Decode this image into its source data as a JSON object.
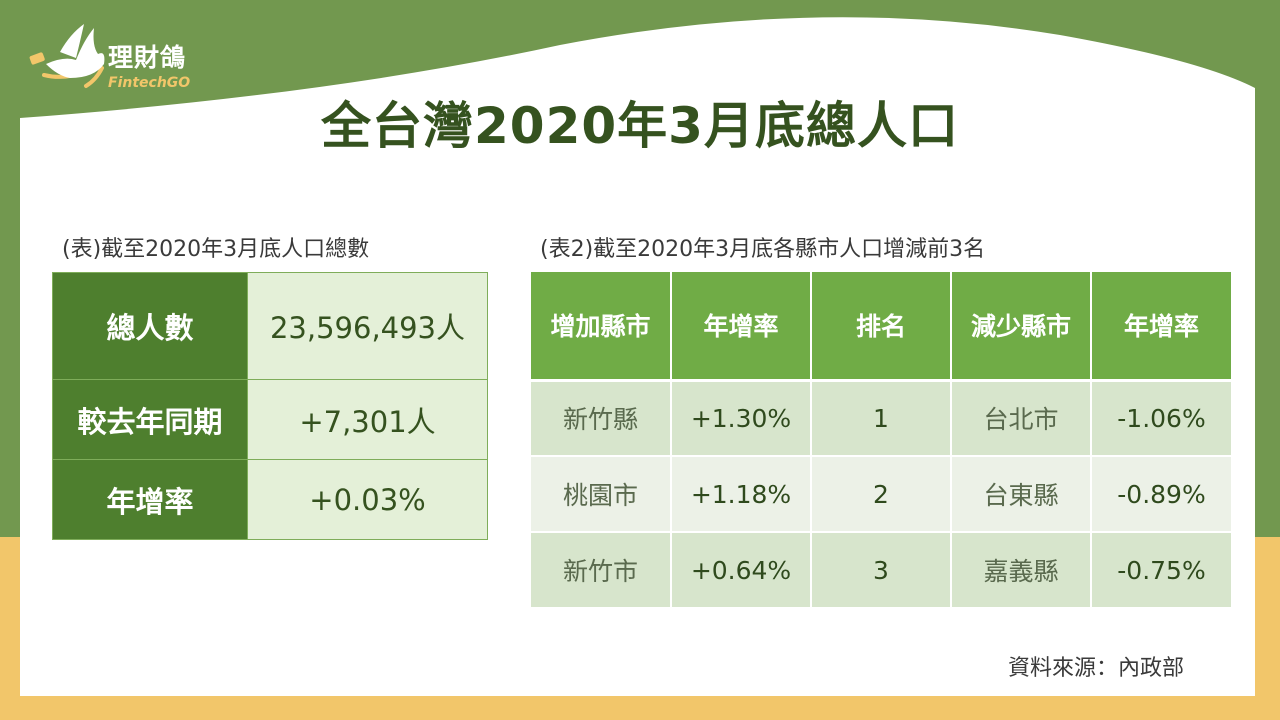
{
  "logo": {
    "name": "理財鴿",
    "sub": "FintechGO",
    "icon": "dove-icon"
  },
  "title": "全台灣2020年3月底總人口",
  "table1": {
    "caption": "(表)截至2020年3月底人口總數",
    "rows": [
      {
        "label": "總人數",
        "value": "23,596,493人"
      },
      {
        "label": "較去年同期",
        "value": "+7,301人"
      },
      {
        "label": "年增率",
        "value": "+0.03%"
      }
    ]
  },
  "table2": {
    "caption": "(表2)截至2020年3月底各縣市人口增減前3名",
    "headers": [
      "增加縣市",
      "年增率",
      "排名",
      "減少縣市",
      "年增率"
    ],
    "rows": [
      [
        "新竹縣",
        "+1.30%",
        "1",
        "台北市",
        "-1.06%"
      ],
      [
        "桃園市",
        "+1.18%",
        "2",
        "台東縣",
        "-0.89%"
      ],
      [
        "新竹市",
        "+0.64%",
        "3",
        "嘉義縣",
        "-0.75%"
      ]
    ]
  },
  "source": "資料來源：內政部",
  "colors": {
    "green_bg": "#72984f",
    "dark_green": "#4e7f2e",
    "header_green": "#70ac46",
    "yellow_band": "#f2c66a",
    "title_green": "#35521f"
  }
}
